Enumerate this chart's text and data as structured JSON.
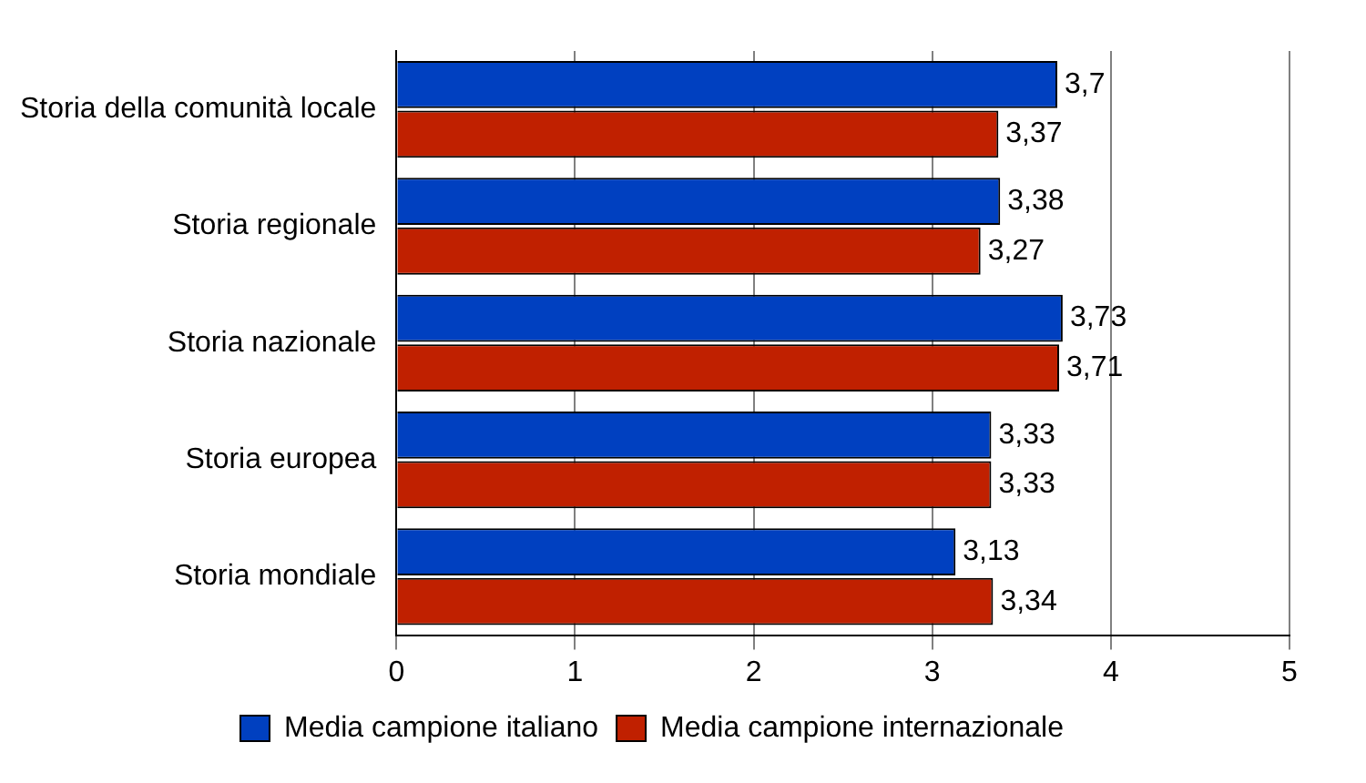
{
  "chart_data": {
    "type": "bar",
    "orientation": "horizontal",
    "categories": [
      "Storia della comunità locale",
      "Storia regionale",
      "Storia nazionale",
      "Storia europea",
      "Storia mondiale"
    ],
    "series": [
      {
        "name": "Media campione italiano",
        "color": "#0040c0",
        "values": [
          3.7,
          3.38,
          3.73,
          3.33,
          3.13
        ],
        "value_labels": [
          "3,7",
          "3,38",
          "3,73",
          "3,33",
          "3,13"
        ]
      },
      {
        "name": "Media campione internazionale",
        "color": "#c02000",
        "values": [
          3.37,
          3.27,
          3.71,
          3.33,
          3.34
        ],
        "value_labels": [
          "3,37",
          "3,27",
          "3,71",
          "3,33",
          "3,34"
        ]
      }
    ],
    "xlim": [
      0,
      5
    ],
    "xticks": [
      0,
      1,
      2,
      3,
      4,
      5
    ],
    "grid": "x",
    "legend": "bottom"
  }
}
